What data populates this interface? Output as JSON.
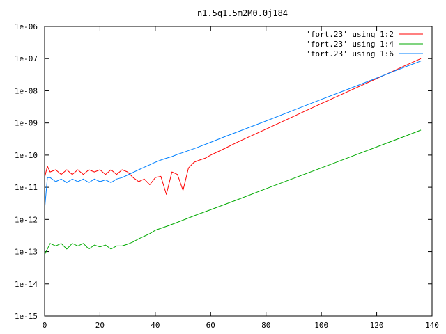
{
  "chart_data": {
    "type": "line",
    "title": "n1.5q1.5m2M0.0j184",
    "xlabel": "",
    "ylabel": "",
    "x_scale": "linear",
    "y_scale": "log",
    "xlim": [
      0,
      140
    ],
    "ylim": [
      1e-15,
      1e-06
    ],
    "x_ticks": [
      0,
      20,
      40,
      60,
      80,
      100,
      120,
      140
    ],
    "x_tick_labels": [
      "0",
      "20",
      "40",
      "60",
      "80",
      "100",
      "120",
      "140"
    ],
    "y_ticks": [
      1e-15,
      1e-14,
      1e-13,
      1e-12,
      1e-11,
      1e-10,
      1e-09,
      1e-08,
      1e-07,
      1e-06
    ],
    "y_tick_labels": [
      "1e-15",
      "1e-14",
      "1e-13",
      "1e-12",
      "1e-11",
      "1e-10",
      "1e-09",
      "1e-08",
      "1e-07",
      "1e-06"
    ],
    "grid": false,
    "legend_position": "top-right",
    "series": [
      {
        "name": "'fort.23' using 1:2",
        "color": "#ff0000",
        "x": [
          0,
          1,
          2,
          4,
          6,
          8,
          10,
          12,
          14,
          16,
          18,
          20,
          22,
          24,
          26,
          28,
          30,
          32,
          34,
          36,
          38,
          40,
          42,
          44,
          46,
          48,
          50,
          52,
          54,
          56,
          58,
          60,
          65,
          70,
          75,
          80,
          90,
          100,
          110,
          120,
          130,
          136
        ],
        "y": [
          2e-11,
          4.5e-11,
          3e-11,
          3.5e-11,
          2.5e-11,
          3.5e-11,
          2.5e-11,
          3.5e-11,
          2.5e-11,
          3.5e-11,
          3e-11,
          3.5e-11,
          2.5e-11,
          3.5e-11,
          2.5e-11,
          3.5e-11,
          3e-11,
          2e-11,
          1.5e-11,
          1.8e-11,
          1.2e-11,
          2e-11,
          2.2e-11,
          6e-12,
          3e-11,
          2.5e-11,
          8e-12,
          4e-11,
          6e-11,
          7e-11,
          8e-11,
          1e-10,
          1.6e-10,
          2.6e-10,
          4.1e-10,
          6.4e-10,
          1.6e-09,
          4e-09,
          9.8e-09,
          2.4e-08,
          5.9e-08,
          1e-07
        ]
      },
      {
        "name": "'fort.23' using 1:4",
        "color": "#00aa00",
        "x": [
          0,
          2,
          4,
          6,
          8,
          10,
          12,
          14,
          16,
          18,
          20,
          22,
          24,
          26,
          28,
          30,
          32,
          34,
          36,
          38,
          40,
          45,
          50,
          55,
          60,
          70,
          80,
          90,
          100,
          110,
          120,
          130,
          136
        ],
        "y": [
          8e-14,
          1.8e-13,
          1.5e-13,
          1.8e-13,
          1.2e-13,
          1.8e-13,
          1.5e-13,
          1.8e-13,
          1.2e-13,
          1.6e-13,
          1.4e-13,
          1.6e-13,
          1.2e-13,
          1.5e-13,
          1.5e-13,
          1.7e-13,
          2e-13,
          2.5e-13,
          3e-13,
          3.6e-13,
          4.6e-13,
          6.5e-13,
          9.5e-13,
          1.4e-12,
          2e-12,
          4.2e-12,
          9e-12,
          1.9e-11,
          4e-11,
          8.5e-11,
          1.8e-10,
          3.8e-10,
          6e-10
        ]
      },
      {
        "name": "'fort.23' using 1:6",
        "color": "#0080ff",
        "x": [
          0,
          1,
          2,
          4,
          6,
          8,
          10,
          12,
          14,
          16,
          18,
          20,
          22,
          24,
          26,
          28,
          30,
          32,
          34,
          36,
          38,
          40,
          42,
          44,
          46,
          48,
          50,
          55,
          60,
          65,
          70,
          80,
          90,
          100,
          110,
          120,
          130,
          136
        ],
        "y": [
          2e-12,
          2e-11,
          2e-11,
          1.5e-11,
          1.8e-11,
          1.4e-11,
          1.8e-11,
          1.5e-11,
          1.8e-11,
          1.4e-11,
          1.8e-11,
          1.5e-11,
          1.7e-11,
          1.4e-11,
          1.8e-11,
          2e-11,
          2.4e-11,
          2.9e-11,
          3.5e-11,
          4.2e-11,
          5e-11,
          6e-11,
          7e-11,
          8e-11,
          9e-11,
          1.05e-10,
          1.2e-10,
          1.7e-10,
          2.5e-10,
          3.7e-10,
          5.4e-10,
          1.15e-09,
          2.5e-09,
          5.4e-09,
          1.15e-08,
          2.5e-08,
          5.4e-08,
          8.4e-08
        ]
      }
    ]
  }
}
